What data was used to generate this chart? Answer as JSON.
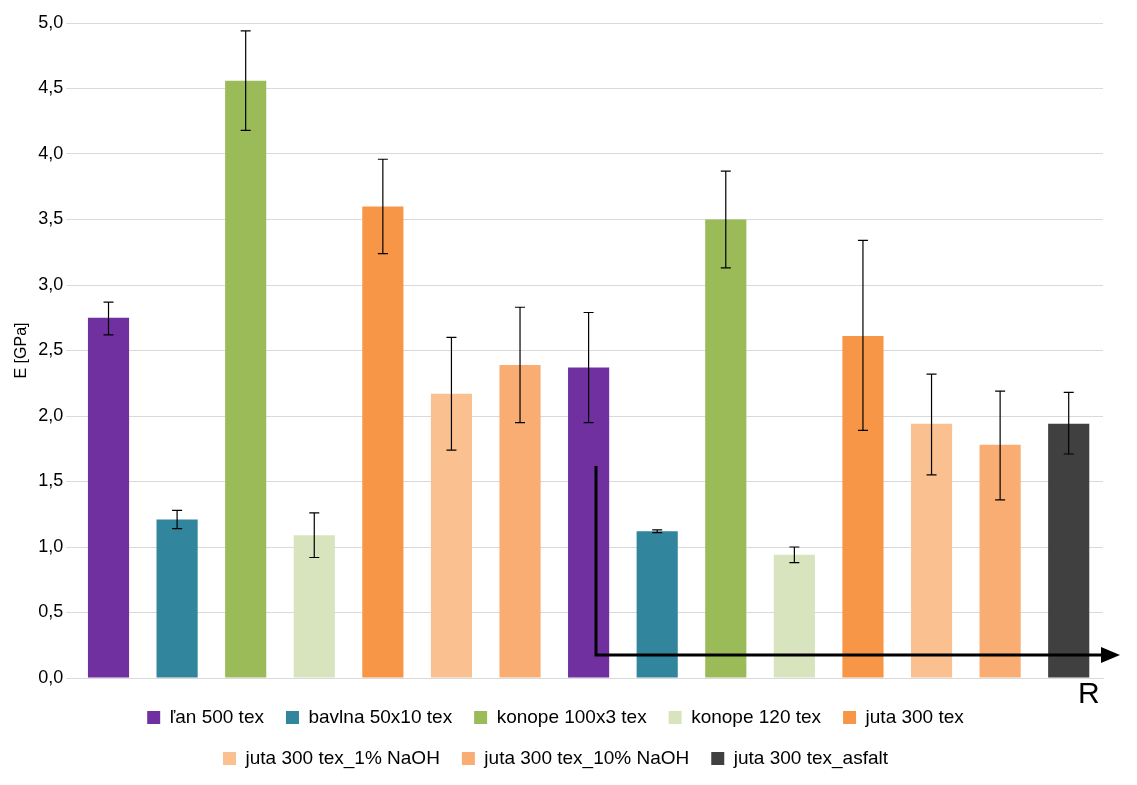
{
  "chart_data": {
    "type": "bar",
    "ylabel": "E [GPa]",
    "categories": [
      null,
      null,
      null,
      null,
      null,
      null,
      null,
      null,
      null,
      null,
      null,
      null,
      null,
      null,
      null
    ],
    "series": [
      {
        "name": "ľan 500 tex",
        "color": "#7030a0",
        "values": [
          2.75,
          null,
          null,
          null,
          null,
          null,
          null,
          2.37,
          null,
          null,
          null,
          null,
          null,
          null,
          null
        ],
        "errors": [
          [
            2.62,
            2.87
          ],
          null,
          null,
          null,
          null,
          null,
          null,
          [
            1.95,
            2.79
          ],
          null,
          null,
          null,
          null,
          null,
          null,
          null
        ]
      },
      {
        "name": "bavlna 50x10 tex",
        "color": "#31859c",
        "values": [
          null,
          1.21,
          null,
          null,
          null,
          null,
          null,
          null,
          1.12,
          null,
          null,
          null,
          null,
          null,
          null
        ],
        "errors": [
          null,
          [
            1.14,
            1.28
          ],
          null,
          null,
          null,
          null,
          null,
          null,
          [
            1.11,
            1.13
          ],
          null,
          null,
          null,
          null,
          null,
          null
        ]
      },
      {
        "name": "konope 100x3 tex",
        "color": "#9bbb59",
        "values": [
          null,
          null,
          4.56,
          null,
          null,
          null,
          null,
          null,
          null,
          3.5,
          null,
          null,
          null,
          null,
          null
        ],
        "errors": [
          null,
          null,
          [
            4.18,
            4.94
          ],
          null,
          null,
          null,
          null,
          null,
          null,
          [
            3.13,
            3.87
          ],
          null,
          null,
          null,
          null,
          null
        ]
      },
      {
        "name": "konope 120 tex",
        "color": "#d7e4bd",
        "values": [
          null,
          null,
          null,
          1.09,
          null,
          null,
          null,
          null,
          null,
          null,
          0.94,
          null,
          null,
          null,
          null
        ],
        "errors": [
          null,
          null,
          null,
          [
            0.92,
            1.26
          ],
          null,
          null,
          null,
          null,
          null,
          null,
          [
            0.88,
            1.0
          ],
          null,
          null,
          null,
          null
        ]
      },
      {
        "name": "juta 300 tex",
        "color": "#f79646",
        "values": [
          null,
          null,
          null,
          null,
          3.6,
          null,
          null,
          null,
          null,
          null,
          null,
          2.61,
          null,
          null,
          null
        ],
        "errors": [
          null,
          null,
          null,
          null,
          [
            3.24,
            3.96
          ],
          null,
          null,
          null,
          null,
          null,
          null,
          [
            1.89,
            3.34
          ],
          null,
          null,
          null
        ]
      },
      {
        "name": "juta 300 tex_1% NaOH",
        "color": "#fac090",
        "values": [
          null,
          null,
          null,
          null,
          null,
          2.17,
          null,
          null,
          null,
          null,
          null,
          null,
          1.94,
          null,
          null
        ],
        "errors": [
          null,
          null,
          null,
          null,
          null,
          [
            1.74,
            2.6
          ],
          null,
          null,
          null,
          null,
          null,
          null,
          [
            1.55,
            2.32
          ],
          null,
          null
        ]
      },
      {
        "name": "juta 300 tex_10% NaOH",
        "color": "#f9ad72",
        "values": [
          null,
          null,
          null,
          null,
          null,
          null,
          2.39,
          null,
          null,
          null,
          null,
          null,
          null,
          1.78,
          null
        ],
        "errors": [
          null,
          null,
          null,
          null,
          null,
          null,
          [
            1.95,
            2.83
          ],
          null,
          null,
          null,
          null,
          null,
          null,
          [
            1.36,
            2.19
          ],
          null
        ]
      },
      {
        "name": "juta 300 tex_asfalt",
        "color": "#404040",
        "values": [
          null,
          null,
          null,
          null,
          null,
          null,
          null,
          null,
          null,
          null,
          null,
          null,
          null,
          null,
          1.94
        ],
        "errors": [
          null,
          null,
          null,
          null,
          null,
          null,
          null,
          null,
          null,
          null,
          null,
          null,
          null,
          null,
          [
            1.71,
            2.18
          ]
        ]
      }
    ],
    "ylim": [
      0,
      5
    ],
    "yticks": [
      {
        "value": 0,
        "label": "0,0"
      },
      {
        "value": 0.5,
        "label": "0,5"
      },
      {
        "value": 1,
        "label": "1,0"
      },
      {
        "value": 1.5,
        "label": "1,5"
      },
      {
        "value": 2,
        "label": "2,0"
      },
      {
        "value": 2.5,
        "label": "2,5"
      },
      {
        "value": 3,
        "label": "3,0"
      },
      {
        "value": 3.5,
        "label": "3,5"
      },
      {
        "value": 4,
        "label": "4,0"
      },
      {
        "value": 4.5,
        "label": "4,5"
      },
      {
        "value": 5,
        "label": "5,0"
      }
    ],
    "grid": "y",
    "legend": "bottom",
    "annotations": [
      {
        "text": "R"
      }
    ]
  }
}
